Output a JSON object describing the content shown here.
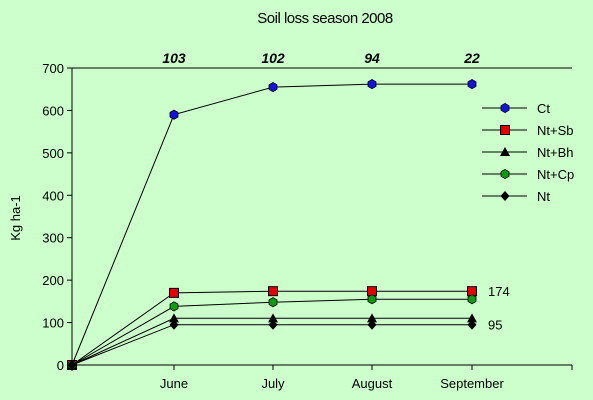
{
  "chart_data": {
    "type": "line",
    "title": "Soil loss season 2008",
    "ylabel": "Kg ha-1",
    "xlabel": "",
    "categories": [
      "",
      "June",
      "July",
      "August",
      "September"
    ],
    "ylim": [
      0,
      700
    ],
    "yticks": [
      0,
      100,
      200,
      300,
      400,
      500,
      600,
      700
    ],
    "top_labels": [
      "103",
      "102",
      "94",
      "22"
    ],
    "end_labels": [
      {
        "series": "Nt+Sb",
        "text": "174"
      },
      {
        "series": "Nt",
        "text": "95"
      }
    ],
    "grid": false,
    "legend_position": "right",
    "series": [
      {
        "name": "Ct",
        "marker": "hexagon",
        "color": "#1515d8",
        "values": [
          0,
          590,
          655,
          662,
          662
        ]
      },
      {
        "name": "Nt+Sb",
        "marker": "square",
        "color": "#e00000",
        "values": [
          0,
          170,
          174,
          174,
          174
        ]
      },
      {
        "name": "Nt+Bh",
        "marker": "triangle",
        "color": "#000000",
        "values": [
          0,
          110,
          110,
          110,
          110
        ]
      },
      {
        "name": "Nt+Cp",
        "marker": "hexagon",
        "color": "#119911",
        "values": [
          0,
          138,
          148,
          155,
          155
        ]
      },
      {
        "name": "Nt",
        "marker": "diamond",
        "color": "#000000",
        "values": [
          0,
          95,
          95,
          95,
          95
        ]
      }
    ]
  }
}
